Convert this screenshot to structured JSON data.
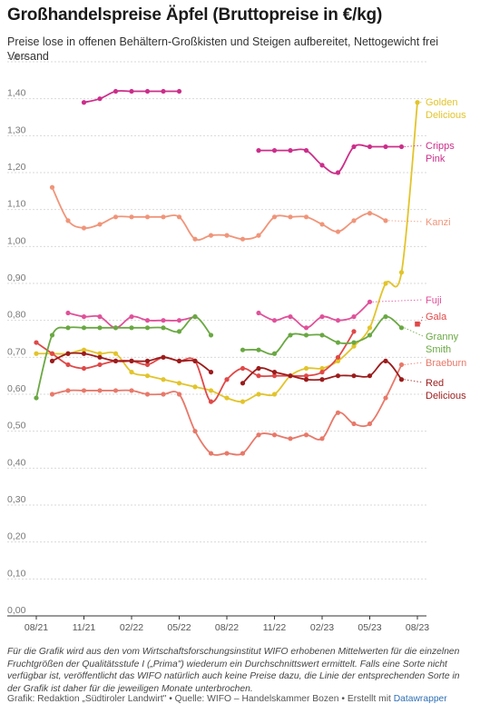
{
  "header": {
    "title": "Großhandelspreise Äpfel (Bruttopreise in €/kg)",
    "subtitle": "Preise lose in offenen Behältern-Großkisten und Steigen aufbereitet, Nettogewicht frei Versand"
  },
  "footer": {
    "notes": "Für die Grafik wird aus den vom Wirtschaftsforschungsinstitut WIFO erhobenen Mittelwerten für die einzelnen Fruchtgrößen der Qualitätsstufe I („Prima\") wiederum ein Durchschnittswert ermittelt. Falls eine Sorte nicht verfügbar ist, veröffentlicht das WIFO natürlich auch keine Preise dazu, die Linie der entsprechenden Sorte in der Grafik ist daher für die jeweiligen Monate unterbrochen.",
    "source": "Grafik: Redaktion „Südtiroler Landwirt\" • Quelle: WIFO – Handelskammer Bozen • Erstellt mit ",
    "source_link": "Datawrapper"
  },
  "chart_data": {
    "type": "line",
    "x_unit": "Monat",
    "x": [
      "08/21",
      "09/21",
      "10/21",
      "11/21",
      "12/21",
      "01/22",
      "02/22",
      "03/22",
      "04/22",
      "05/22",
      "06/22",
      "07/22",
      "08/22",
      "09/22",
      "10/22",
      "11/22",
      "12/22",
      "01/23",
      "02/23",
      "03/23",
      "04/23",
      "05/23",
      "06/23",
      "07/23",
      "08/23"
    ],
    "x_tick_labels": [
      "08/21",
      "11/21",
      "02/22",
      "05/22",
      "08/22",
      "11/22",
      "02/23",
      "05/23",
      "08/23"
    ],
    "ylim": [
      0,
      1.5
    ],
    "y_ticks": [
      "0,00",
      "0,10",
      "0,20",
      "0,30",
      "0,40",
      "0,50",
      "0,60",
      "0,70",
      "0,80",
      "0,90",
      "1,00",
      "1,10",
      "1,20",
      "1,30",
      "1,40",
      "1,50"
    ],
    "grid": true,
    "series": [
      {
        "name": "Golden Delicious",
        "label_lines": [
          "Golden",
          "Delicious"
        ],
        "color": "#e2c42b",
        "values": [
          0.71,
          0.71,
          0.71,
          0.72,
          0.71,
          0.71,
          0.66,
          0.65,
          0.64,
          0.63,
          0.62,
          0.61,
          0.59,
          0.58,
          0.6,
          0.6,
          0.65,
          0.67,
          0.67,
          0.69,
          0.73,
          0.78,
          0.9,
          0.93,
          1.39
        ]
      },
      {
        "name": "Cripps Pink",
        "label_lines": [
          "Cripps",
          "Pink"
        ],
        "color": "#cc2e8a",
        "values": [
          null,
          null,
          null,
          1.39,
          1.4,
          1.42,
          1.42,
          1.42,
          1.42,
          1.42,
          null,
          null,
          null,
          null,
          1.26,
          1.26,
          1.26,
          1.26,
          1.22,
          1.2,
          1.27,
          1.27,
          1.27,
          1.27,
          null
        ]
      },
      {
        "name": "Kanzi",
        "label_lines": [
          "Kanzi"
        ],
        "color": "#f0957a",
        "values": [
          null,
          1.16,
          1.07,
          1.05,
          1.06,
          1.08,
          1.08,
          1.08,
          1.08,
          1.08,
          1.02,
          1.03,
          1.03,
          1.02,
          1.03,
          1.08,
          1.08,
          1.08,
          1.06,
          1.04,
          1.07,
          1.09,
          1.07,
          null,
          null
        ]
      },
      {
        "name": "Fuji",
        "label_lines": [
          "Fuji"
        ],
        "color": "#e0519a",
        "values": [
          null,
          null,
          0.82,
          0.81,
          0.81,
          0.78,
          0.81,
          0.8,
          0.8,
          0.8,
          0.81,
          null,
          null,
          null,
          0.82,
          0.8,
          0.81,
          0.78,
          0.81,
          0.8,
          0.81,
          0.85,
          null,
          null,
          null
        ]
      },
      {
        "name": "Gala",
        "label_lines": [
          "Gala"
        ],
        "color": "#e04848",
        "values": [
          0.74,
          0.71,
          0.68,
          0.67,
          0.68,
          0.69,
          0.69,
          0.68,
          0.7,
          0.69,
          0.69,
          0.58,
          0.64,
          0.67,
          0.65,
          0.65,
          0.65,
          0.65,
          0.66,
          0.7,
          0.77,
          null,
          null,
          null,
          0.79
        ]
      },
      {
        "name": "Granny Smith",
        "label_lines": [
          "Granny",
          "Smith"
        ],
        "color": "#6aa843",
        "values": [
          0.59,
          0.76,
          0.78,
          0.78,
          0.78,
          0.78,
          0.78,
          0.78,
          0.78,
          0.77,
          0.81,
          0.76,
          null,
          0.72,
          0.72,
          0.71,
          0.76,
          0.76,
          0.76,
          0.74,
          0.74,
          0.76,
          0.81,
          0.78,
          null
        ]
      },
      {
        "name": "Braeburn",
        "label_lines": [
          "Braeburn"
        ],
        "color": "#e8796a",
        "values": [
          null,
          0.6,
          0.61,
          0.61,
          0.61,
          0.61,
          0.61,
          0.6,
          0.6,
          0.6,
          0.5,
          0.44,
          0.44,
          0.44,
          0.49,
          0.49,
          0.48,
          0.49,
          0.48,
          0.55,
          0.52,
          0.52,
          0.59,
          0.68,
          null
        ]
      },
      {
        "name": "Red Delicious",
        "label_lines": [
          "Red",
          "Delicious"
        ],
        "color": "#9b1c1c",
        "values": [
          null,
          0.69,
          0.71,
          0.71,
          0.7,
          0.69,
          0.69,
          0.69,
          0.7,
          0.69,
          0.69,
          0.66,
          null,
          0.63,
          0.67,
          0.66,
          0.65,
          0.64,
          0.64,
          0.65,
          0.65,
          0.65,
          0.69,
          0.64,
          null
        ]
      }
    ]
  }
}
